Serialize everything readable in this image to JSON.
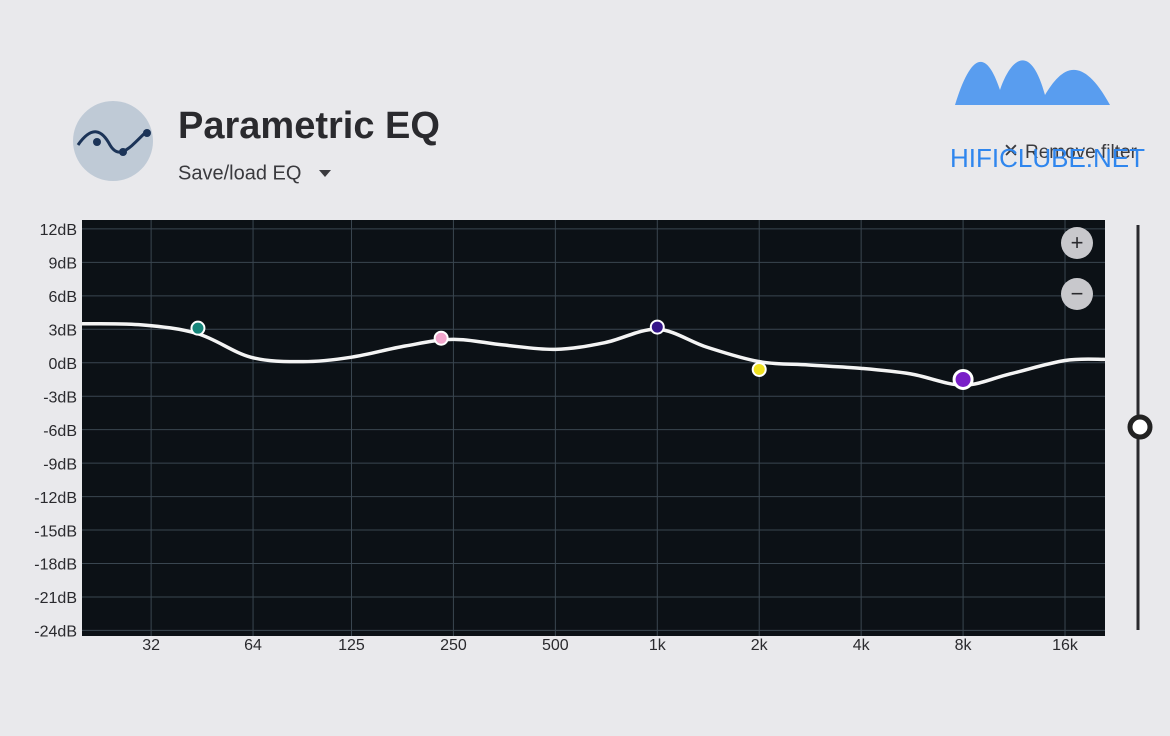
{
  "header": {
    "title": "Parametric EQ",
    "dropdown": "Save/load EQ",
    "remove_button": "Remove filter"
  },
  "watermark": "HIFICLUBE.NET",
  "chart_data": {
    "type": "line",
    "log_x": true,
    "grid": true,
    "xlim": [
      20,
      21000
    ],
    "ylim": [
      -24.5,
      12.8
    ],
    "xticks": [
      32,
      64,
      125,
      250,
      500,
      {
        "value": 1000,
        "label": "1k"
      },
      {
        "value": 2000,
        "label": "2k"
      },
      {
        "value": 4000,
        "label": "4k"
      },
      {
        "value": 8000,
        "label": "8k"
      },
      {
        "value": 16000,
        "label": "16k"
      }
    ],
    "yticks": [
      {
        "value": 12,
        "label": "12dB"
      },
      {
        "value": 9,
        "label": "9dB"
      },
      {
        "value": 6,
        "label": "6dB"
      },
      {
        "value": 3,
        "label": "3dB"
      },
      {
        "value": 0,
        "label": "0dB"
      },
      {
        "value": -3,
        "label": "-3dB"
      },
      {
        "value": -6,
        "label": "-6dB"
      },
      {
        "value": -9,
        "label": "-9dB"
      },
      {
        "value": -12,
        "label": "-12dB"
      },
      {
        "value": -15,
        "label": "-15dB"
      },
      {
        "value": -18,
        "label": "-18dB"
      },
      {
        "value": -21,
        "label": "-21dB"
      },
      {
        "value": -24,
        "label": "-24dB"
      }
    ],
    "x": [
      20,
      30,
      44,
      63,
      90,
      125,
      180,
      250,
      350,
      500,
      700,
      1000,
      1400,
      2000,
      2800,
      4000,
      5600,
      8000,
      11000,
      16000,
      21000
    ],
    "series": [
      {
        "color": "#f4f4f4",
        "values": [
          3.5,
          3.4,
          2.6,
          0.5,
          0.1,
          0.5,
          1.5,
          2.1,
          1.6,
          1.2,
          1.8,
          3.0,
          1.4,
          0.1,
          -0.2,
          -0.5,
          -1.0,
          -2.0,
          -1.0,
          0.2,
          0.3
        ]
      }
    ],
    "points": {
      "x": [
        44,
        230,
        1000,
        2000,
        8000
      ],
      "values": [
        3.1,
        2.2,
        3.2,
        -0.6,
        -1.5
      ],
      "colors": [
        "#15857a",
        "#f2a6cc",
        "#35168a",
        "#efe020",
        "#7a1fc8"
      ]
    }
  }
}
